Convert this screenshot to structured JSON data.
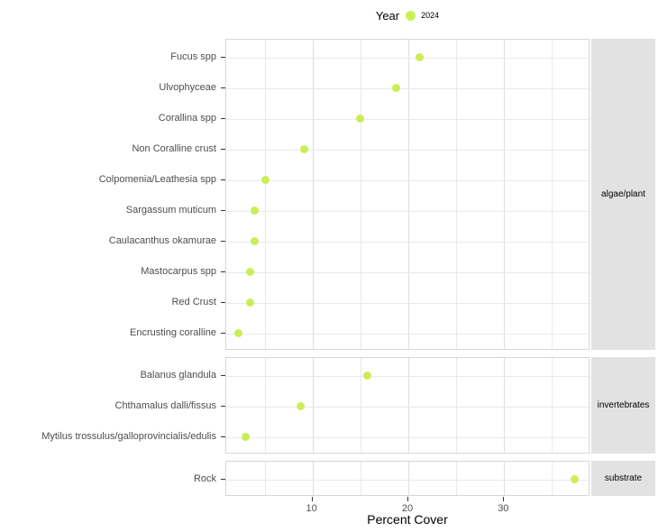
{
  "legend": {
    "title": "Year",
    "entries": [
      {
        "label": "2024"
      }
    ]
  },
  "colors": {
    "dot": "#cbee57",
    "strip_bg": "#e2e2e2",
    "grid_major": "#dedede",
    "grid_minor": "#e9e9e9",
    "panel_border": "#d6d6d6",
    "axis_text": "#4d4d4d",
    "tick_mark": "#333333"
  },
  "chart_data": {
    "type": "scatter",
    "subtype": "cleveland-dot-plot",
    "title": "",
    "xlabel": "Percent Cover",
    "ylabel": "",
    "xlim": [
      1,
      39
    ],
    "x_major_ticks": [
      10,
      20,
      30
    ],
    "x_minor_ticks": [
      5,
      15,
      25,
      35
    ],
    "grid": true,
    "legend_position": "top",
    "series_name": "2024",
    "facets": [
      {
        "label": "algae/plant",
        "categories": [
          "Fucus spp",
          "Ulvophyceae",
          "Corallina spp",
          "Non Coralline crust",
          "Colpomenia/Leathesia spp",
          "Sargassum muticum",
          "Caulacanthus okamurae",
          "Mastocarpus spp",
          "Red Crust",
          "Encrusting coralline"
        ],
        "values": [
          21.2,
          18.7,
          15.0,
          9.1,
          5.1,
          4.0,
          4.0,
          3.5,
          3.5,
          2.3
        ]
      },
      {
        "label": "invertebrates",
        "categories": [
          "Balanus glandula",
          "Chthamalus dalli/fissus",
          "Mytilus trossulus/galloprovincialis/edulis"
        ],
        "values": [
          15.7,
          8.8,
          3.0
        ]
      },
      {
        "label": "substrate",
        "categories": [
          "Rock"
        ],
        "values": [
          37.4
        ]
      }
    ]
  }
}
